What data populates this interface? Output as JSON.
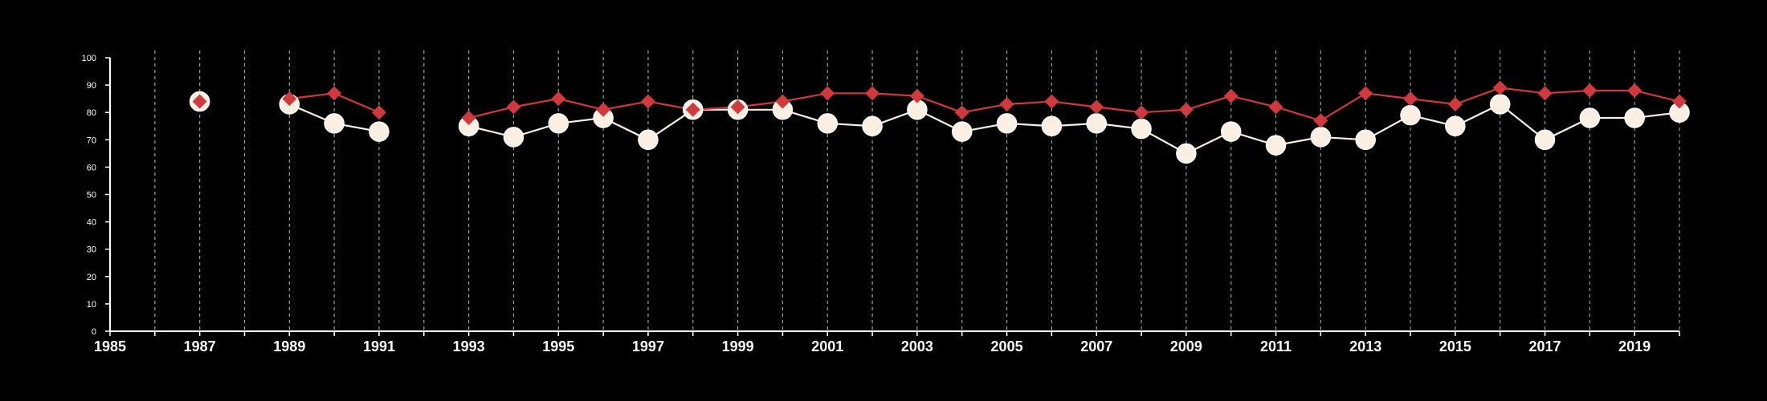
{
  "chart_data": {
    "type": "line",
    "title": "",
    "xlabel": "",
    "ylabel": "",
    "xlim": [
      1985,
      2020
    ],
    "ylim": [
      0,
      100
    ],
    "grid": "vertical dashed lines at each year",
    "y_ticks": [
      "0",
      "10",
      "20",
      "30",
      "40",
      "50",
      "60",
      "70",
      "80",
      "90",
      "100"
    ],
    "x_ticks": [
      "1985",
      "1987",
      "1989",
      "1991",
      "1993",
      "1995",
      "1997",
      "1999",
      "2001",
      "2003",
      "2005",
      "2007",
      "2009",
      "2011",
      "2013",
      "2015",
      "2017",
      "2019"
    ],
    "x_tick_values": [
      1985,
      1987,
      1989,
      1991,
      1993,
      1995,
      1997,
      1999,
      2001,
      2003,
      2005,
      2007,
      2009,
      2011,
      2013,
      2015,
      2017,
      2019
    ],
    "x": [
      1987,
      1989,
      1990,
      1991,
      1993,
      1994,
      1995,
      1996,
      1997,
      1998,
      1999,
      2000,
      2001,
      2002,
      2003,
      2004,
      2005,
      2006,
      2007,
      2008,
      2009,
      2010,
      2011,
      2012,
      2013,
      2014,
      2015,
      2016,
      2017,
      2018,
      2019,
      2020
    ],
    "series": [
      {
        "marker": "circle",
        "color": "#fbefe2",
        "values": [
          84,
          83,
          76,
          73,
          75,
          71,
          76,
          78,
          70,
          81,
          81,
          81,
          76,
          75,
          81,
          73,
          76,
          75,
          76,
          74,
          65,
          73,
          68,
          71,
          70,
          79,
          75,
          83,
          70,
          78,
          78,
          80
        ]
      },
      {
        "marker": "diamond",
        "color": "#d03a3d",
        "values": [
          84,
          85,
          87,
          80,
          78,
          82,
          85,
          81,
          84,
          81,
          82,
          84,
          87,
          87,
          86,
          80,
          83,
          84,
          82,
          80,
          81,
          86,
          82,
          77,
          87,
          85,
          83,
          89,
          87,
          88,
          88,
          84
        ]
      }
    ]
  }
}
